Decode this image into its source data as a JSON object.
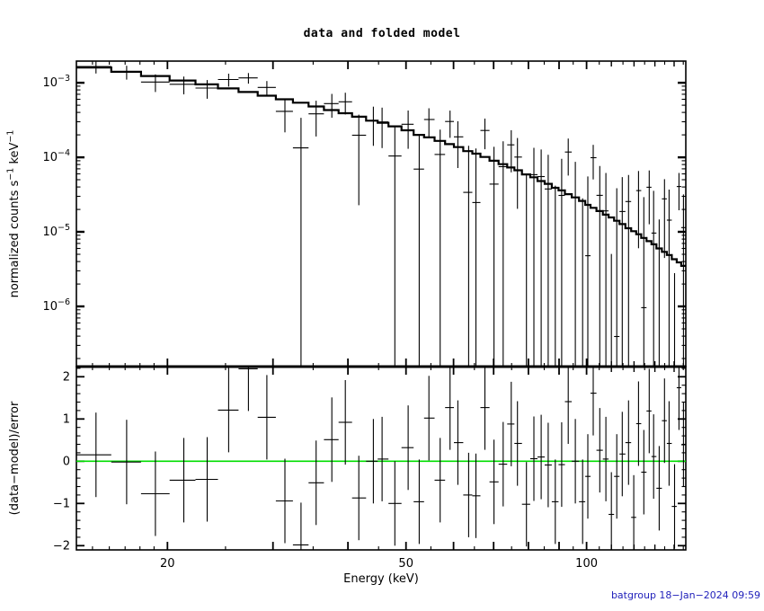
{
  "title": "data and folded model",
  "footer": {
    "timestamp": "batgroup 18-Jan-2024 09:59",
    "timestamp_color": "#2222bb"
  },
  "colors": {
    "foreground": "#000000",
    "background": "#ffffff",
    "zero_line": "#00dd00"
  },
  "chart_data": {
    "type": "scatter",
    "subtype": "xspec data and folded model with residuals",
    "title": "data and folded model",
    "xscale": "log",
    "xlim": [
      14.1,
      146.4
    ],
    "x_axis": {
      "label": "Energy (keV)",
      "ticks_labeled": [
        20,
        50,
        100
      ],
      "ticks_major": [
        20,
        30,
        40,
        50,
        60,
        70,
        80,
        90,
        100
      ],
      "ticks_medium": [
        110,
        120,
        130,
        140
      ],
      "ticks_minor": [
        15,
        16,
        17,
        18,
        19,
        25,
        35,
        45,
        55,
        65,
        75,
        85,
        95,
        105,
        115,
        125,
        135,
        145
      ]
    },
    "panel_top": {
      "ylabel": "normalized counts s^-1 keV^-1",
      "yscale": "log",
      "ylim": [
        1.56e-07,
        0.00195
      ],
      "ytick_exponents": [
        -3,
        -4,
        -5,
        -6
      ]
    },
    "panel_bottom": {
      "ylabel": "(data-model)/error",
      "yscale": "linear",
      "ylim": [
        -2.1,
        2.24
      ],
      "yticks": [
        2,
        1,
        0,
        -1,
        -2
      ],
      "ytick_minor_step": 0.2,
      "zero_line": 0
    },
    "bins": {
      "energy_keV": [
        15.2,
        17.1,
        19.1,
        21.3,
        23.3,
        25.3,
        27.3,
        29.3,
        31.4,
        33.4,
        35.4,
        37.6,
        39.6,
        41.7,
        44.1,
        45.6,
        47.9,
        50.4,
        52.6,
        54.6,
        57.0,
        59.2,
        61.0,
        63.6,
        65.4,
        67.7,
        70.1,
        72.6,
        74.9,
        76.7,
        79.4,
        81.7,
        84.0,
        86.3,
        88.7,
        90.9,
        93.2,
        95.8,
        98.5,
        100.5,
        102.6,
        105.2,
        107.7,
        110.0,
        112.3,
        114.7,
        117.5,
        119.9,
        122.1,
        124.6,
        127.2,
        129.4,
        132.2,
        134.9,
        137.3,
        140.2,
        142.6,
        145.1
      ],
      "model": [
        0.0016,
        0.0014,
        0.00123,
        0.00107,
        0.00095,
        0.00084,
        0.00075,
        0.00067,
        0.0006,
        0.00054,
        0.00048,
        0.00043,
        0.00039,
        0.00035,
        0.00031,
        0.00029,
        0.00026,
        0.00023,
        0.0002,
        0.000185,
        0.000166,
        0.00015,
        0.000137,
        0.000121,
        0.000112,
        0.000101,
        9e-05,
        8.1e-05,
        7.3e-05,
        6.7e-05,
        5.9e-05,
        5.4e-05,
        4.8e-05,
        4.4e-05,
        3.9e-05,
        3.6e-05,
        3.2e-05,
        2.9e-05,
        2.6e-05,
        2.3e-05,
        2.1e-05,
        1.9e-05,
        1.7e-05,
        1.56e-05,
        1.41e-05,
        1.27e-05,
        1.12e-05,
        1.02e-05,
        9.3e-06,
        8.3e-06,
        7.5e-06,
        6.8e-06,
        6e-06,
        5.4e-06,
        4.9e-06,
        4.3e-06,
        3.9e-06,
        3.5e-06
      ],
      "resid_sigma": [
        0.15,
        -0.02,
        -0.77,
        -0.45,
        -0.43,
        1.21,
        2.19,
        1.04,
        -0.94,
        -1.98,
        -0.51,
        0.51,
        0.92,
        -0.87,
        0.0,
        0.05,
        -1.0,
        0.32,
        -0.96,
        1.02,
        -0.45,
        1.27,
        0.44,
        -0.8,
        -0.82,
        1.27,
        -0.49,
        -0.07,
        0.88,
        0.42,
        -1.02,
        0.06,
        0.1,
        -0.09,
        -0.96,
        -0.08,
        1.41,
        0.0,
        -0.96,
        -0.36,
        1.61,
        0.26,
        0.05,
        -1.26,
        -0.36,
        0.17,
        0.44,
        -1.33,
        0.89,
        -0.26,
        1.19,
        0.11,
        -0.64,
        0.96,
        0.42,
        -1.07,
        1.74,
        0.39
      ],
      "err_rel": [
        0.2,
        0.21,
        0.22,
        0.24,
        0.25,
        0.26,
        0.25,
        0.28,
        0.33,
        0.38,
        0.4,
        0.43,
        0.46,
        0.5,
        0.54,
        0.57,
        0.6,
        0.64,
        0.68,
        0.72,
        0.76,
        0.8,
        0.85,
        0.9,
        0.95,
        1.0,
        1.05,
        1.1,
        1.15,
        1.2,
        1.3,
        1.4,
        1.5,
        1.6,
        1.7,
        1.8,
        1.9,
        2.0,
        2.1,
        2.2,
        2.3,
        2.4,
        2.5,
        2.6,
        2.7,
        2.8,
        2.9,
        3.0,
        3.2,
        3.4,
        3.6,
        3.8,
        4.0,
        4.3,
        4.6,
        5.0,
        5.4,
        5.8
      ]
    },
    "derivation": "data rate = model*(1+resid_sigma*err_rel); rate error = model*err_rel; residual error bars = +/-1 sigma"
  }
}
